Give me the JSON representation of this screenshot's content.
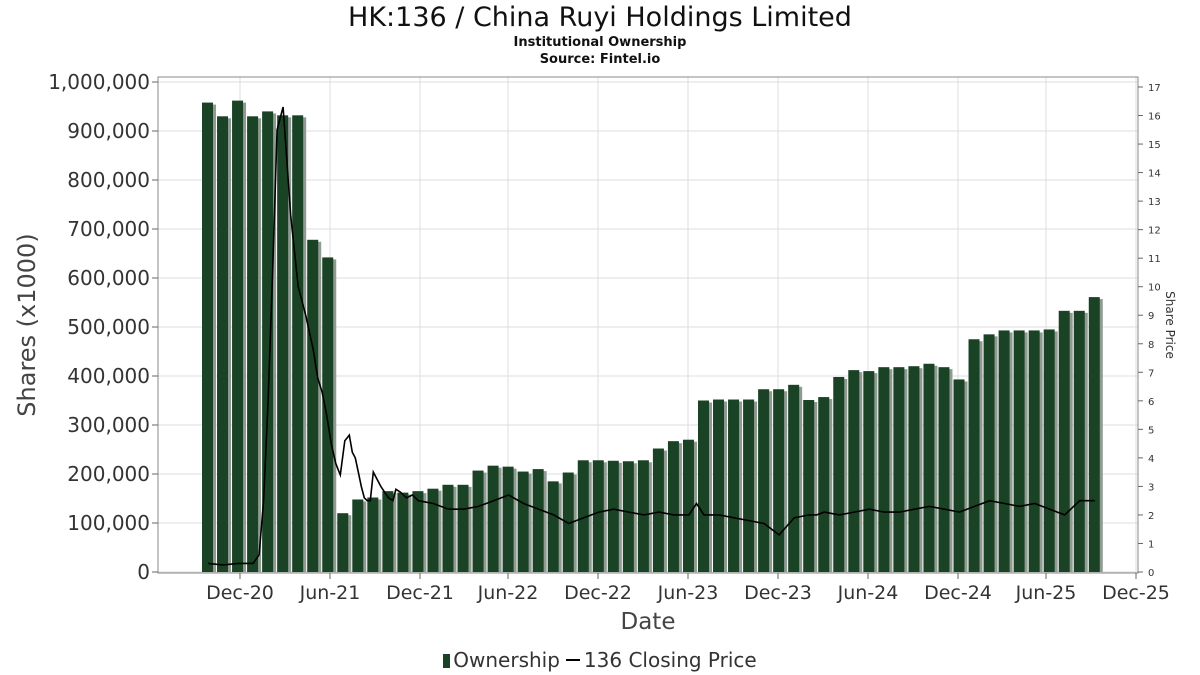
{
  "chart_data": {
    "type": "bar",
    "title": "HK:136 / China Ruyi Holdings Limited",
    "subtitle": "Institutional Ownership",
    "source": "Source: Fintel.io",
    "xlabel": "Date",
    "ylabel": "Shares (x1000)",
    "y2label": "Share Price",
    "ylim": [
      0,
      1000000
    ],
    "y2lim": [
      0,
      17
    ],
    "yticks": [
      "0",
      "100,000",
      "200,000",
      "300,000",
      "400,000",
      "500,000",
      "600,000",
      "700,000",
      "800,000",
      "900,000",
      "1,000,000"
    ],
    "y2ticks": [
      "0",
      "1",
      "2",
      "3",
      "4",
      "5",
      "6",
      "7",
      "8",
      "9",
      "10",
      "11",
      "12",
      "13",
      "14",
      "15",
      "16",
      "17"
    ],
    "xticks": [
      "Dec-20",
      "Jun-21",
      "Dec-21",
      "Jun-22",
      "Dec-22",
      "Jun-23",
      "Dec-23",
      "Jun-24",
      "Dec-24",
      "Jun-25",
      "Dec-25"
    ],
    "grid": true,
    "legend_position": "bottom",
    "series": [
      {
        "name": "Ownership",
        "type": "bar",
        "color": "#1a4326",
        "values": [
          958000,
          930000,
          962000,
          930000,
          940000,
          932000,
          932000,
          678000,
          642000,
          120000,
          148000,
          152000,
          165000,
          162000,
          165000,
          170000,
          178000,
          178000,
          207000,
          217000,
          215000,
          205000,
          210000,
          185000,
          203000,
          228000,
          228000,
          227000,
          226000,
          228000,
          252000,
          267000,
          270000,
          350000,
          352000,
          352000,
          352000,
          373000,
          373000,
          382000,
          351000,
          357000,
          398000,
          412000,
          410000,
          418000,
          418000,
          420000,
          425000,
          418000,
          393000,
          475000,
          485000,
          493000,
          493000,
          493000,
          495000,
          533000,
          533000,
          561000
        ]
      },
      {
        "name": "136 Closing Price",
        "type": "line",
        "color": "#000000",
        "x_month_index": [
          0,
          1,
          2,
          3,
          3.4,
          3.7,
          4.0,
          4.3,
          4.6,
          5.0,
          5.5,
          6.0,
          6.5,
          7.0,
          7.3,
          7.6,
          7.9,
          8.2,
          8.5,
          8.8,
          9.1,
          9.4,
          9.6,
          9.8,
          10.0,
          10.2,
          10.4,
          10.6,
          10.8,
          11.0,
          11.5,
          12.0,
          12.3,
          12.5,
          12.8,
          13.2,
          13.6,
          14.0,
          15.0,
          16.0,
          17.0,
          18.0,
          19.0,
          20.0,
          21.0,
          22.0,
          23.0,
          24.0,
          25.0,
          26.0,
          27.0,
          28.0,
          29.0,
          30.0,
          31.0,
          32.0,
          32.5,
          33.0,
          34.0,
          35.0,
          36.0,
          37.0,
          38.0,
          39.0,
          40.0,
          40.5,
          41.0,
          42.0,
          43.0,
          44.0,
          45.0,
          46.0,
          47.0,
          48.0,
          49.0,
          50.0,
          51.0,
          52.0,
          53.0,
          54.0,
          55.0,
          56.0,
          57.0,
          58.0,
          59.0
        ],
        "values": [
          0.3,
          0.25,
          0.3,
          0.3,
          0.6,
          2.5,
          6.0,
          10.5,
          15.5,
          16.3,
          12.5,
          10.0,
          9.0,
          7.8,
          6.8,
          6.3,
          5.5,
          4.5,
          3.8,
          3.4,
          4.6,
          4.8,
          4.2,
          4.0,
          3.5,
          3.0,
          2.6,
          2.5,
          2.5,
          3.5,
          3.0,
          2.6,
          2.5,
          2.9,
          2.8,
          2.6,
          2.7,
          2.5,
          2.4,
          2.2,
          2.2,
          2.3,
          2.5,
          2.7,
          2.4,
          2.2,
          2.0,
          1.7,
          1.9,
          2.1,
          2.2,
          2.1,
          2.0,
          2.1,
          2.0,
          2.0,
          2.4,
          2.0,
          2.0,
          1.9,
          1.8,
          1.7,
          1.3,
          1.9,
          2.0,
          2.0,
          2.1,
          2.0,
          2.1,
          2.2,
          2.1,
          2.1,
          2.2,
          2.3,
          2.2,
          2.1,
          2.3,
          2.5,
          2.4,
          2.3,
          2.4,
          2.2,
          2.0,
          2.5,
          2.5
        ]
      }
    ]
  }
}
